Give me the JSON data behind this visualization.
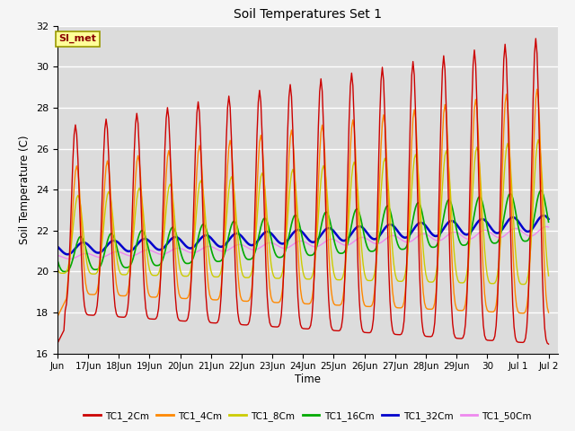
{
  "title": "Soil Temperatures Set 1",
  "xlabel": "Time",
  "ylabel": "Soil Temperature (C)",
  "ylim": [
    16,
    32
  ],
  "yticks": [
    16,
    18,
    20,
    22,
    24,
    26,
    28,
    30,
    32
  ],
  "annotation_text": "SI_met",
  "annotation_color": "#8B0000",
  "annotation_bg": "#FFFF99",
  "annotation_border": "#999900",
  "series_colors": {
    "TC1_2Cm": "#CC0000",
    "TC1_4Cm": "#FF8800",
    "TC1_8Cm": "#CCCC00",
    "TC1_16Cm": "#00AA00",
    "TC1_32Cm": "#0000CC",
    "TC1_50Cm": "#EE88EE"
  },
  "line_widths": {
    "TC1_2Cm": 1.0,
    "TC1_4Cm": 1.0,
    "TC1_8Cm": 1.0,
    "TC1_16Cm": 1.2,
    "TC1_32Cm": 1.8,
    "TC1_50Cm": 1.0
  },
  "background_color": "#DCDCDC",
  "grid_color": "#FFFFFF",
  "fig_bg": "#F5F5F5",
  "tick_labels": [
    "Jun",
    "17Jun",
    "18Jun",
    "19Jun",
    "20Jun",
    "21Jun",
    "22Jun",
    "23Jun",
    "24Jun",
    "25Jun",
    "26Jun",
    "27Jun",
    "28Jun",
    "29Jun",
    "30",
    "Jul 1",
    "Jul 2"
  ],
  "tick_positions": [
    16,
    17,
    18,
    19,
    20,
    21,
    22,
    23,
    24,
    25,
    26,
    27,
    28,
    29,
    30,
    31,
    32
  ]
}
